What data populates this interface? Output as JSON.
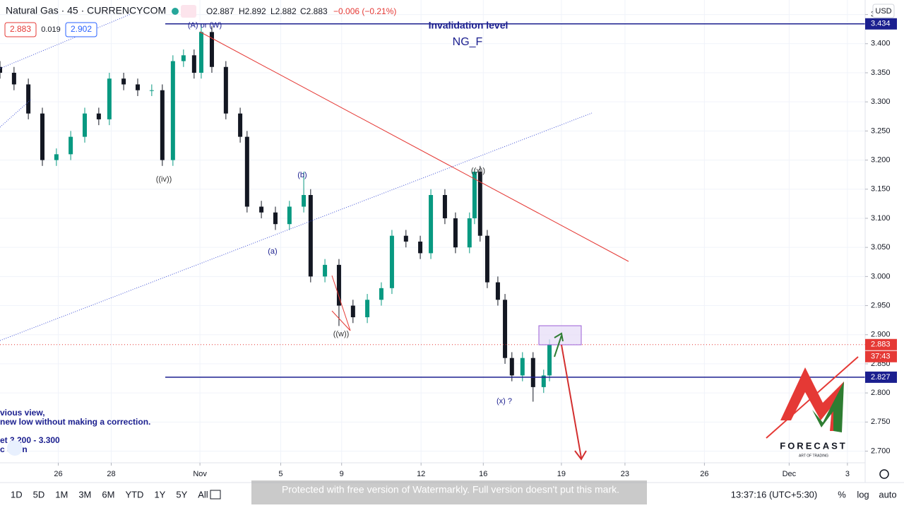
{
  "header": {
    "symbol": "Natural Gas · 45 · CURRENCYCOM",
    "open": "O2.887",
    "high": "H2.892",
    "low": "L2.882",
    "close": "C2.883",
    "change": "−0.006 (−0.21%)",
    "bid": "2.883",
    "spread": "0.019",
    "ask": "2.902"
  },
  "chart_data": {
    "type": "candlestick",
    "currency": "USD",
    "x": [
      0,
      0.53,
      1.07,
      1.6,
      2.13,
      2.67,
      3.2,
      3.73,
      4.13,
      4.67,
      5.2,
      5.73,
      6.13,
      6.53,
      6.93,
      7.33,
      7.6,
      8,
      8.53,
      9.07,
      9.33,
      9.87,
      10.4,
      10.93,
      11.47,
      11.73,
      12.27,
      12.8,
      13.33,
      13.87,
      14.4,
      14.8,
      15.33,
      15.87,
      16.27,
      16.8,
      17.2,
      17.73,
      17.92,
      18.13,
      18.4,
      18.8,
      19.07,
      19.33,
      19.73,
      20.13,
      20.53,
      20.75
    ],
    "open": [
      3.36,
      3.35,
      3.33,
      3.28,
      3.2,
      3.21,
      3.24,
      3.28,
      3.27,
      3.34,
      3.33,
      3.32,
      3.32,
      3.2,
      3.37,
      3.38,
      3.35,
      3.42,
      3.36,
      3.28,
      3.24,
      3.12,
      3.11,
      3.09,
      3.12,
      3.14,
      3.0,
      3.02,
      2.95,
      2.93,
      2.96,
      2.98,
      3.07,
      3.06,
      3.04,
      3.14,
      3.1,
      3.05,
      3.1,
      3.18,
      3.07,
      2.99,
      2.96,
      2.86,
      2.83,
      2.86,
      2.81,
      2.83
    ],
    "high": [
      3.37,
      3.36,
      3.34,
      3.29,
      3.22,
      3.25,
      3.29,
      3.29,
      3.35,
      3.35,
      3.34,
      3.33,
      3.33,
      3.38,
      3.39,
      3.39,
      3.434,
      3.43,
      3.37,
      3.29,
      3.25,
      3.13,
      3.12,
      3.13,
      3.18,
      3.15,
      3.03,
      3.03,
      2.96,
      2.97,
      2.99,
      3.08,
      3.08,
      3.07,
      3.15,
      3.15,
      3.11,
      3.11,
      3.185,
      3.19,
      3.08,
      3.0,
      2.97,
      2.87,
      2.87,
      2.87,
      2.84,
      2.892
    ],
    "low": [
      3.34,
      3.32,
      3.27,
      3.19,
      3.19,
      3.2,
      3.23,
      3.26,
      3.26,
      3.32,
      3.31,
      3.31,
      3.19,
      3.19,
      3.36,
      3.34,
      3.34,
      3.35,
      3.27,
      3.23,
      3.11,
      3.1,
      3.08,
      3.08,
      3.11,
      2.99,
      2.99,
      2.915,
      2.92,
      2.92,
      2.95,
      2.97,
      3.05,
      3.03,
      3.03,
      3.09,
      3.04,
      3.04,
      3.09,
      3.06,
      2.98,
      2.95,
      2.85,
      2.82,
      2.82,
      2.785,
      2.8,
      2.82
    ],
    "close": [
      3.35,
      3.33,
      3.28,
      3.2,
      3.21,
      3.24,
      3.28,
      3.27,
      3.34,
      3.33,
      3.32,
      3.32,
      3.2,
      3.37,
      3.38,
      3.35,
      3.42,
      3.36,
      3.28,
      3.24,
      3.12,
      3.11,
      3.09,
      3.12,
      3.14,
      3.0,
      3.02,
      2.95,
      2.93,
      2.96,
      2.98,
      3.07,
      3.06,
      3.04,
      3.14,
      3.1,
      3.05,
      3.1,
      3.18,
      3.07,
      2.99,
      2.96,
      2.86,
      2.83,
      2.86,
      2.81,
      2.83,
      2.883
    ],
    "up_color": "#089981",
    "down_color": "#131722",
    "xlim": [
      0,
      32.67
    ],
    "xticks": [
      {
        "value": 2.2,
        "label": "26"
      },
      {
        "value": 4.2,
        "label": "28"
      },
      {
        "value": 7.55,
        "label": "Nov"
      },
      {
        "value": 10.6,
        "label": "5"
      },
      {
        "value": 12.9,
        "label": "9"
      },
      {
        "value": 15.9,
        "label": "12"
      },
      {
        "value": 18.25,
        "label": "16"
      },
      {
        "value": 21.2,
        "label": "19"
      },
      {
        "value": 23.6,
        "label": "23"
      },
      {
        "value": 26.6,
        "label": "26"
      },
      {
        "value": 29.8,
        "label": "Dec"
      },
      {
        "value": 32,
        "label": "3"
      }
    ],
    "ylim": [
      2.68,
      3.475
    ],
    "yticks": [
      {
        "value": 3.45,
        "label": "3.450"
      },
      {
        "value": 3.4,
        "label": "3.400"
      },
      {
        "value": 3.35,
        "label": "3.350"
      },
      {
        "value": 3.3,
        "label": "3.300"
      },
      {
        "value": 3.25,
        "label": "3.250"
      },
      {
        "value": 3.2,
        "label": "3.200"
      },
      {
        "value": 3.15,
        "label": "3.150"
      },
      {
        "value": 3.1,
        "label": "3.100"
      },
      {
        "value": 3.05,
        "label": "3.050"
      },
      {
        "value": 3,
        "label": "3.000"
      },
      {
        "value": 2.95,
        "label": "2.950"
      },
      {
        "value": 2.9,
        "label": "2.900"
      },
      {
        "value": 2.85,
        "label": "2.850"
      },
      {
        "value": 2.8,
        "label": "2.800"
      },
      {
        "value": 2.75,
        "label": "2.750"
      },
      {
        "value": 2.7,
        "label": "2.700"
      }
    ],
    "levels": [
      {
        "value": 3.434,
        "color": "#1b1f8f",
        "style": "solid"
      },
      {
        "value": 2.883,
        "color": "#e53935",
        "style": "dotted"
      },
      {
        "value": 2.827,
        "color": "#1b1f8f",
        "style": "solid"
      }
    ],
    "countdown": "37:43"
  },
  "annotations": {
    "a_or_w": "(A) or (W)",
    "invalidation": "Invalidation level",
    "symbol_tag": "NG_F",
    "iv": "((iv))",
    "b": "(b)",
    "a": "(a)",
    "w": "((w))",
    "xx": "((x))",
    "x_q": "(x) ?",
    "note": [
      "vious view,",
      "new low without making a correction.",
      "et  3.200 - 3.300",
      "c  ction"
    ]
  },
  "logo": {
    "name": "FORECAST",
    "tagline": "ART OF TRADING"
  },
  "toolbar": {
    "ranges": [
      "1D",
      "5D",
      "1M",
      "3M",
      "6M",
      "YTD",
      "1Y",
      "5Y",
      "All"
    ],
    "time": "13:37:16 (UTC+5:30)",
    "percent": "%",
    "log": "log",
    "auto": "auto"
  },
  "watermark": "Protected with free version of Watermarkly. Full version doesn't put this mark."
}
